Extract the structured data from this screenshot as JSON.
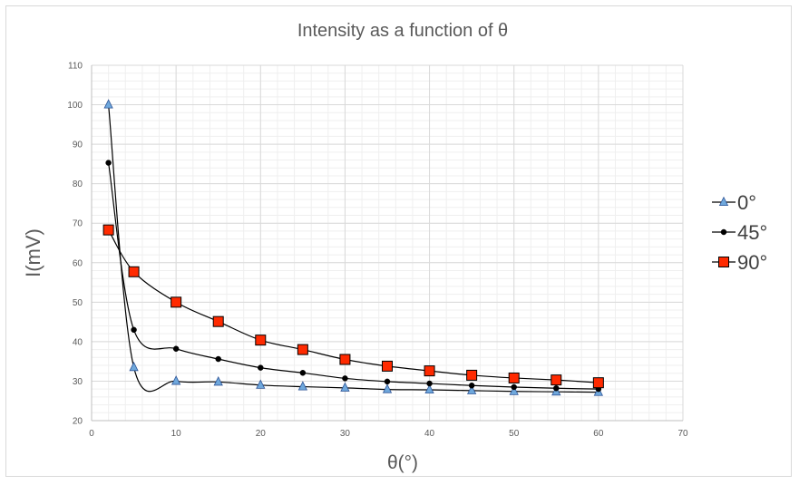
{
  "chart_data": {
    "type": "line",
    "title": "Intensity as a function of θ",
    "xlabel": "θ(°)",
    "ylabel": "I(mV)",
    "xlim": [
      0,
      70
    ],
    "ylim": [
      20,
      110
    ],
    "x_ticks": [
      0,
      10,
      20,
      30,
      40,
      50,
      60,
      70
    ],
    "y_ticks": [
      20,
      30,
      40,
      50,
      60,
      70,
      80,
      90,
      100,
      110
    ],
    "grid": true,
    "smooth": true,
    "legend_position": "right",
    "series": [
      {
        "name": "0°",
        "marker": "triangle",
        "color": "#6fa8dc",
        "line_color": "#000000",
        "x": [
          2,
          5,
          10,
          15,
          20,
          25,
          30,
          35,
          40,
          45,
          50,
          55,
          60
        ],
        "y": [
          100,
          33.5,
          30,
          29.8,
          29,
          28.6,
          28.3,
          27.9,
          27.8,
          27.6,
          27.4,
          27.3,
          27.2
        ]
      },
      {
        "name": "45°",
        "marker": "circle",
        "color": "#000000",
        "line_color": "#000000",
        "x": [
          2,
          5,
          10,
          15,
          20,
          25,
          30,
          35,
          40,
          45,
          50,
          55,
          60
        ],
        "y": [
          85.3,
          43,
          38.2,
          35.6,
          33.4,
          32.1,
          30.7,
          29.9,
          29.4,
          28.9,
          28.5,
          28.2,
          28
        ]
      },
      {
        "name": "90°",
        "marker": "square",
        "color": "#ff2a00",
        "line_color": "#000000",
        "x": [
          2,
          5,
          10,
          15,
          20,
          25,
          30,
          35,
          40,
          45,
          50,
          55,
          60
        ],
        "y": [
          68.3,
          57.7,
          50,
          45.1,
          40.4,
          38,
          35.5,
          33.8,
          32.6,
          31.5,
          30.8,
          30.3,
          29.6
        ]
      }
    ]
  }
}
